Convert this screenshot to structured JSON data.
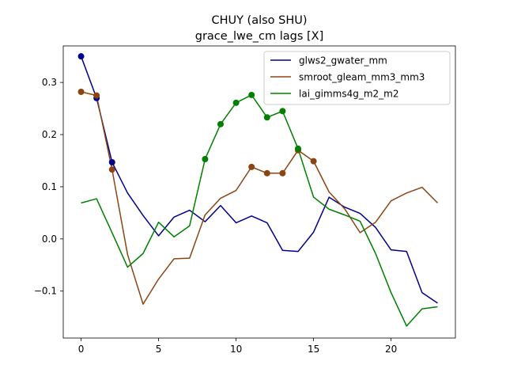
{
  "chart_data": {
    "type": "line",
    "title": "CHUY (also SHU)",
    "subtitle": "grace_lwe_cm lags [X]",
    "xlabel": "",
    "ylabel": "",
    "xlim": [
      -1.15,
      24.15
    ],
    "ylim": [
      -0.19,
      0.37
    ],
    "xticks": [
      0,
      5,
      10,
      15,
      20
    ],
    "yticks": [
      -0.1,
      0.0,
      0.1,
      0.2,
      0.3
    ],
    "ytick_labels": [
      "−0.1",
      "0.0",
      "0.1",
      "0.2",
      "0.3"
    ],
    "grid": false,
    "legend_position": "upper right",
    "x": [
      0,
      1,
      2,
      3,
      4,
      5,
      6,
      7,
      8,
      9,
      10,
      11,
      12,
      13,
      14,
      15,
      16,
      17,
      18,
      19,
      20,
      21,
      22,
      23
    ],
    "series": [
      {
        "name": "glws2_gwater_mm",
        "color": "#00008b",
        "values": [
          0.35,
          0.27,
          0.147,
          0.088,
          0.045,
          0.006,
          0.042,
          0.055,
          0.033,
          0.064,
          0.031,
          0.044,
          0.031,
          -0.022,
          -0.024,
          0.013,
          0.08,
          0.061,
          0.049,
          0.022,
          -0.021,
          -0.024,
          -0.103,
          -0.123
        ],
        "markers": [
          0,
          1,
          2
        ]
      },
      {
        "name": "smroot_gleam_mm3_mm3",
        "color": "#8b4513",
        "values": [
          0.282,
          0.275,
          0.133,
          -0.03,
          -0.125,
          -0.077,
          -0.038,
          -0.037,
          0.046,
          0.078,
          0.093,
          0.138,
          0.126,
          0.126,
          0.17,
          0.149,
          0.09,
          0.058,
          0.012,
          0.032,
          0.073,
          0.088,
          0.099,
          0.069
        ],
        "markers": [
          0,
          1,
          2,
          11,
          12,
          13,
          14,
          15
        ]
      },
      {
        "name": "lai_gimms4g_m2_m2",
        "color": "#008000",
        "values": [
          0.069,
          0.077,
          0.012,
          -0.054,
          -0.028,
          0.032,
          0.004,
          0.025,
          0.153,
          0.22,
          0.261,
          0.276,
          0.233,
          0.245,
          0.173,
          0.08,
          0.057,
          0.046,
          0.034,
          -0.028,
          -0.103,
          -0.167,
          -0.134,
          -0.13
        ],
        "markers": [
          8,
          9,
          10,
          11,
          12,
          13,
          14
        ]
      }
    ]
  }
}
